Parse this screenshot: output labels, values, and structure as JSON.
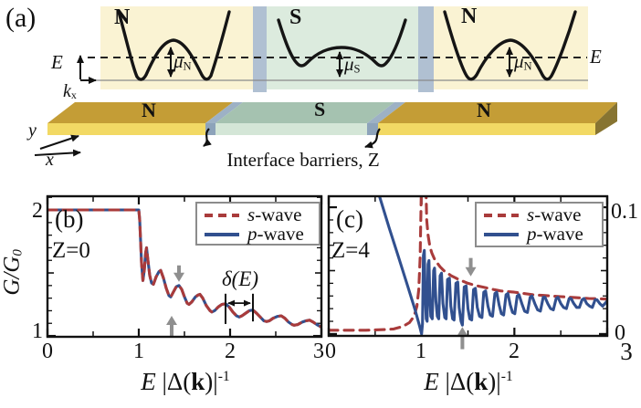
{
  "colors": {
    "s_wave": "#a93b3b",
    "p_wave": "#31508f",
    "arrow_gray": "#8f8f8f",
    "n_region_bg": "#faf3d3",
    "s_region_bg": "#dcebde",
    "barrier": "#b0c0d2",
    "slab_gold_top": "#c49d36",
    "slab_gold_front": "#f2d964",
    "slab_green_top": "#a5c2b0",
    "slab_green_front": "#d4e6d7"
  },
  "panel_a": {
    "label": "(a)",
    "band_n1": "N",
    "band_s": "S",
    "band_n2": "N",
    "energy_axis_label": "E",
    "momentum_axis_base": "k",
    "momentum_axis_sub": "x",
    "fermi_level_label": "E",
    "mu_n1_base": "μ",
    "mu_n1_sub": "N",
    "mu_s_base": "μ",
    "mu_s_sub": "S",
    "mu_n2_base": "μ",
    "mu_n2_sub": "N",
    "slab_n1": "N",
    "slab_s": "S",
    "slab_n2": "N",
    "coord_y": "y",
    "coord_x": "x",
    "caption": "Interface barriers, Z"
  },
  "chart_data": [
    {
      "id": "panel-b",
      "type": "line",
      "panel_label": "(b)",
      "barrier_label": "Z=0",
      "xlabel_parts": {
        "var": "E",
        "mid": " |Δ(",
        "kvar": "k",
        "end": ")|",
        "exp": "-1"
      },
      "ylabel_parts": {
        "base": "G/G",
        "sub": "0"
      },
      "xlim": [
        0,
        3
      ],
      "ylim": [
        0.993,
        2.109
      ],
      "xticks": [
        0,
        1,
        2,
        3
      ],
      "xtick_labels": [
        "0",
        "1",
        "2",
        "3"
      ],
      "yticks": [
        1,
        2
      ],
      "ytick_labels": [
        "2",
        "1"
      ],
      "x_minor_step": 0.5,
      "y_minor_step": 0.1,
      "y_medium_step": 0.5,
      "legend": [
        {
          "prefix": "s",
          "rest": "-wave",
          "style": "dash"
        },
        {
          "prefix": "p",
          "rest": "-wave",
          "style": "solid"
        }
      ],
      "series": [
        {
          "name": "p-wave",
          "color": "#31508f",
          "dashed": false,
          "shared": true
        },
        {
          "name": "s-wave",
          "color": "#a93b3b",
          "dashed": true,
          "shared": true
        }
      ],
      "shared_points": [
        [
          0,
          2
        ],
        [
          0.5,
          2
        ],
        [
          0.9,
          2
        ],
        [
          1.0,
          2
        ],
        [
          1.01,
          1.92
        ],
        [
          1.03,
          1.58
        ],
        [
          1.045,
          1.44
        ],
        [
          1.06,
          1.52
        ],
        [
          1.075,
          1.66
        ],
        [
          1.085,
          1.7
        ],
        [
          1.1,
          1.6
        ],
        [
          1.12,
          1.48
        ],
        [
          1.14,
          1.42
        ],
        [
          1.16,
          1.41
        ],
        [
          1.19,
          1.47
        ],
        [
          1.22,
          1.51
        ],
        [
          1.24,
          1.52
        ],
        [
          1.27,
          1.46
        ],
        [
          1.3,
          1.38
        ],
        [
          1.33,
          1.32
        ],
        [
          1.35,
          1.31
        ],
        [
          1.38,
          1.35
        ],
        [
          1.41,
          1.39
        ],
        [
          1.44,
          1.4
        ],
        [
          1.47,
          1.37
        ],
        [
          1.5,
          1.31
        ],
        [
          1.53,
          1.26
        ],
        [
          1.55,
          1.25
        ],
        [
          1.58,
          1.27
        ],
        [
          1.62,
          1.31
        ],
        [
          1.65,
          1.325
        ],
        [
          1.67,
          1.33
        ],
        [
          1.7,
          1.3
        ],
        [
          1.74,
          1.24
        ],
        [
          1.78,
          1.2
        ],
        [
          1.8,
          1.19
        ],
        [
          1.83,
          1.2
        ],
        [
          1.87,
          1.23
        ],
        [
          1.91,
          1.25
        ],
        [
          1.95,
          1.255
        ],
        [
          1.99,
          1.23
        ],
        [
          2.03,
          1.19
        ],
        [
          2.07,
          1.16
        ],
        [
          2.1,
          1.15
        ],
        [
          2.13,
          1.16
        ],
        [
          2.17,
          1.18
        ],
        [
          2.21,
          1.2
        ],
        [
          2.25,
          1.205
        ],
        [
          2.29,
          1.18
        ],
        [
          2.33,
          1.15
        ],
        [
          2.37,
          1.12
        ],
        [
          2.4,
          1.115
        ],
        [
          2.43,
          1.12
        ],
        [
          2.47,
          1.14
        ],
        [
          2.52,
          1.155
        ],
        [
          2.56,
          1.16
        ],
        [
          2.6,
          1.14
        ],
        [
          2.64,
          1.11
        ],
        [
          2.68,
          1.09
        ],
        [
          2.7,
          1.085
        ],
        [
          2.74,
          1.09
        ],
        [
          2.79,
          1.11
        ],
        [
          2.83,
          1.12
        ],
        [
          2.87,
          1.125
        ],
        [
          2.91,
          1.11
        ],
        [
          2.95,
          1.09
        ],
        [
          3.0,
          1.07
        ]
      ],
      "gray_arrows": [
        {
          "x": 1.44,
          "y_from": 1.56,
          "y_to": 1.43
        },
        {
          "x": 1.36,
          "y_from": 0.997,
          "y_to": 1.16
        }
      ],
      "period_annotation": {
        "label": "δ(E)",
        "x1": 1.95,
        "x2": 2.25,
        "y_top": 1.335,
        "y_bot1": 1.095,
        "y_bot2": 1.115,
        "arrow_y": 1.26
      }
    },
    {
      "id": "panel-c",
      "type": "line",
      "panel_label": "(c)",
      "barrier_label": "Z=4",
      "xlabel_parts": {
        "var": "E",
        "mid": " |Δ(",
        "kvar": "k",
        "end": ")|",
        "exp": "-1"
      },
      "xlim": [
        0,
        3
      ],
      "ylim": [
        -0.0015,
        0.1087
      ],
      "xticks": [
        0,
        1,
        2,
        3
      ],
      "xtick_labels": [
        "0",
        "1",
        "2",
        "3"
      ],
      "yticks": [
        0,
        0.1
      ],
      "ytick_labels": [
        "0.1",
        "0"
      ],
      "x_minor_step": 0.5,
      "y_minor_step": 0.01,
      "y_medium_step": 0.05,
      "legend": [
        {
          "prefix": "s",
          "rest": "-wave",
          "style": "dash"
        },
        {
          "prefix": "p",
          "rest": "-wave",
          "style": "solid"
        }
      ],
      "series": [
        {
          "name": "s-wave",
          "color": "#a93b3b",
          "dashed": true,
          "points": [
            [
              0,
              0.003
            ],
            [
              0.4,
              0.003
            ],
            [
              0.6,
              0.0035
            ],
            [
              0.7,
              0.004
            ],
            [
              0.8,
              0.006
            ],
            [
              0.87,
              0.009
            ],
            [
              0.92,
              0.014
            ],
            [
              0.95,
              0.022
            ],
            [
              0.97,
              0.035
            ],
            [
              0.985,
              0.06
            ],
            [
              0.995,
              0.105
            ],
            [
              1.0,
              0.125
            ],
            [
              1.045,
              0.125
            ],
            [
              1.055,
              0.09
            ],
            [
              1.07,
              0.078
            ],
            [
              1.09,
              0.069
            ],
            [
              1.11,
              0.064
            ],
            [
              1.14,
              0.059
            ],
            [
              1.17,
              0.056
            ],
            [
              1.2,
              0.053
            ],
            [
              1.24,
              0.05
            ],
            [
              1.28,
              0.048
            ],
            [
              1.32,
              0.046
            ],
            [
              1.36,
              0.0445
            ],
            [
              1.4,
              0.043
            ],
            [
              1.45,
              0.0415
            ],
            [
              1.5,
              0.04
            ],
            [
              1.55,
              0.039
            ],
            [
              1.6,
              0.038
            ],
            [
              1.66,
              0.037
            ],
            [
              1.72,
              0.036
            ],
            [
              1.78,
              0.035
            ],
            [
              1.85,
              0.034
            ],
            [
              1.92,
              0.0335
            ],
            [
              2.0,
              0.033
            ],
            [
              2.1,
              0.032
            ],
            [
              2.2,
              0.031
            ],
            [
              2.3,
              0.0305
            ],
            [
              2.4,
              0.03
            ],
            [
              2.5,
              0.0295
            ],
            [
              2.6,
              0.029
            ],
            [
              2.7,
              0.0285
            ],
            [
              2.8,
              0.028
            ],
            [
              2.9,
              0.0278
            ],
            [
              3.0,
              0.0275
            ]
          ]
        },
        {
          "name": "p-wave",
          "color": "#31508f",
          "dashed": false,
          "points": [
            [
              0.55,
              0.108
            ],
            [
              0.65,
              0.084
            ],
            [
              0.75,
              0.061
            ],
            [
              0.85,
              0.038
            ],
            [
              0.93,
              0.019
            ],
            [
              0.98,
              0.006
            ],
            [
              1.0,
              0.0
            ],
            [
              1.01,
              0.008
            ],
            [
              1.02,
              0.062
            ],
            [
              1.03,
              0.066
            ],
            [
              1.04,
              0.03
            ],
            [
              1.05,
              0.012
            ],
            [
              1.06,
              0.01
            ],
            [
              1.07,
              0.055
            ],
            [
              1.08,
              0.058
            ],
            [
              1.09,
              0.028
            ],
            [
              1.1,
              0.014
            ],
            [
              1.115,
              0.012
            ],
            [
              1.13,
              0.05
            ],
            [
              1.14,
              0.052
            ],
            [
              1.155,
              0.026
            ],
            [
              1.17,
              0.014
            ],
            [
              1.185,
              0.012
            ],
            [
              1.2,
              0.046
            ],
            [
              1.215,
              0.048
            ],
            [
              1.23,
              0.024
            ],
            [
              1.25,
              0.013
            ],
            [
              1.265,
              0.012
            ],
            [
              1.28,
              0.043
            ],
            [
              1.3,
              0.044
            ],
            [
              1.315,
              0.022
            ],
            [
              1.335,
              0.012
            ],
            [
              1.35,
              0.011
            ],
            [
              1.37,
              0.04
            ],
            [
              1.39,
              0.041
            ],
            [
              1.405,
              0.021
            ],
            [
              1.425,
              0.01
            ],
            [
              1.44,
              0.007
            ],
            [
              1.46,
              0.037
            ],
            [
              1.48,
              0.038
            ],
            [
              1.5,
              0.02
            ],
            [
              1.52,
              0.012
            ],
            [
              1.54,
              0.011
            ],
            [
              1.56,
              0.035
            ],
            [
              1.58,
              0.036
            ],
            [
              1.6,
              0.021
            ],
            [
              1.625,
              0.014
            ],
            [
              1.65,
              0.013
            ],
            [
              1.67,
              0.033
            ],
            [
              1.69,
              0.034
            ],
            [
              1.715,
              0.022
            ],
            [
              1.74,
              0.015
            ],
            [
              1.765,
              0.014
            ],
            [
              1.79,
              0.032
            ],
            [
              1.81,
              0.033
            ],
            [
              1.835,
              0.023
            ],
            [
              1.86,
              0.016
            ],
            [
              1.885,
              0.015
            ],
            [
              1.91,
              0.031
            ],
            [
              1.93,
              0.032
            ],
            [
              1.955,
              0.023
            ],
            [
              1.98,
              0.017
            ],
            [
              2.005,
              0.016
            ],
            [
              2.03,
              0.03
            ],
            [
              2.05,
              0.031
            ],
            [
              2.08,
              0.024
            ],
            [
              2.11,
              0.018
            ],
            [
              2.14,
              0.017
            ],
            [
              2.17,
              0.029
            ],
            [
              2.19,
              0.03
            ],
            [
              2.22,
              0.024
            ],
            [
              2.25,
              0.019
            ],
            [
              2.28,
              0.018
            ],
            [
              2.31,
              0.029
            ],
            [
              2.33,
              0.029
            ],
            [
              2.36,
              0.024
            ],
            [
              2.39,
              0.02
            ],
            [
              2.42,
              0.019
            ],
            [
              2.45,
              0.028
            ],
            [
              2.47,
              0.029
            ],
            [
              2.5,
              0.024
            ],
            [
              2.53,
              0.021
            ],
            [
              2.56,
              0.02
            ],
            [
              2.59,
              0.028
            ],
            [
              2.61,
              0.028
            ],
            [
              2.64,
              0.024
            ],
            [
              2.67,
              0.021
            ],
            [
              2.7,
              0.021
            ],
            [
              2.73,
              0.027
            ],
            [
              2.75,
              0.028
            ],
            [
              2.78,
              0.024
            ],
            [
              2.81,
              0.022
            ],
            [
              2.84,
              0.021
            ],
            [
              2.87,
              0.027
            ],
            [
              2.89,
              0.027
            ],
            [
              2.92,
              0.024
            ],
            [
              2.95,
              0.022
            ],
            [
              3.0,
              0.026
            ]
          ]
        }
      ],
      "gray_arrows": [
        {
          "x": 1.53,
          "y_from": 0.06,
          "y_to": 0.0455
        },
        {
          "x": 1.44,
          "y_from": -0.012,
          "y_to": 0.0055
        }
      ]
    }
  ]
}
